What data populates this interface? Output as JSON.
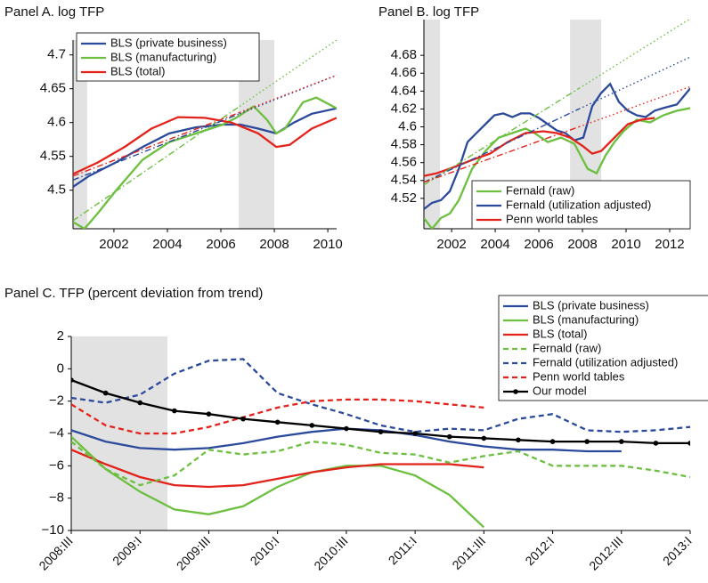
{
  "chart_data": [
    {
      "type": "line",
      "title": "Panel A. log TFP",
      "xlim": [
        2000.47,
        2010.33
      ],
      "xticks": [
        2002,
        2004,
        2006,
        2008,
        2010
      ],
      "ylim": [
        4.443,
        4.722
      ],
      "yticks": [
        4.5,
        4.55,
        4.6,
        4.65,
        4.7
      ],
      "shades": [
        [
          2000.47,
          2001.0
        ],
        [
          2006.67,
          2008.0
        ]
      ],
      "legend": "upper-left",
      "series": [
        {
          "name": "BLS (private business)",
          "color": "#2b4a9b",
          "x": [
            2000.47,
            2001.07,
            2002.07,
            2003.07,
            2004.07,
            2005.07,
            2006.07,
            2006.73,
            2007.4,
            2008.07,
            2008.73,
            2009.4,
            2010.33
          ],
          "values": [
            4.505,
            4.521,
            4.541,
            4.564,
            4.584,
            4.593,
            4.597,
            4.597,
            4.591,
            4.584,
            4.6,
            4.613,
            4.621
          ]
        },
        {
          "name": "BLS (manufacturing)",
          "color": "#6cbf3f",
          "x": [
            2000.47,
            2000.9,
            2001.4,
            2002.07,
            2003.07,
            2004.07,
            2005.07,
            2006.07,
            2006.57,
            2007.23,
            2007.73,
            2008.07,
            2008.4,
            2009.07,
            2009.57,
            2010.33
          ],
          "values": [
            4.453,
            4.443,
            4.466,
            4.499,
            4.545,
            4.571,
            4.584,
            4.597,
            4.607,
            4.624,
            4.604,
            4.584,
            4.591,
            4.63,
            4.637,
            4.621
          ]
        },
        {
          "name": "BLS (total)",
          "color": "#e3231b",
          "x": [
            2000.47,
            2001.4,
            2002.4,
            2003.4,
            2004.4,
            2005.4,
            2006.4,
            2007.4,
            2008.07,
            2008.57,
            2009.4,
            2010.33
          ],
          "values": [
            4.524,
            4.541,
            4.564,
            4.591,
            4.608,
            4.607,
            4.6,
            4.584,
            4.564,
            4.567,
            4.591,
            4.607
          ]
        },
        {
          "color": "#6cbf3f",
          "dash": [
            "dashdot",
            "dot"
          ],
          "x": [
            2000.47,
            2006.7,
            2010.33
          ],
          "values": [
            4.455,
            4.624,
            4.722
          ]
        },
        {
          "color": "#2b4a9b",
          "dash": [
            "dashdot",
            "dot"
          ],
          "x": [
            2000.47,
            2006.7,
            2010.33
          ],
          "values": [
            4.515,
            4.613,
            4.67
          ]
        },
        {
          "color": "#e3231b",
          "dash": [
            "dashdot",
            "dot"
          ],
          "x": [
            2000.47,
            2006.7,
            2010.33
          ],
          "values": [
            4.521,
            4.615,
            4.67
          ]
        }
      ]
    },
    {
      "type": "line",
      "title": "Panel B. log TFP",
      "xlim": [
        2000.73,
        2012.94
      ],
      "xticks": [
        2002,
        2004,
        2006,
        2008,
        2010,
        2012
      ],
      "ylim": [
        4.486,
        4.72
      ],
      "yticks": [
        4.52,
        4.54,
        4.56,
        4.58,
        4.6,
        4.62,
        4.64,
        4.66,
        4.68
      ],
      "shades": [
        [
          2000.73,
          2001.47
        ],
        [
          2007.43,
          2008.86
        ]
      ],
      "legend": "lower-right",
      "series": [
        {
          "name": "Fernald (raw)",
          "color": "#6cbf3f",
          "x": [
            2000.73,
            2001.1,
            2001.51,
            2001.92,
            2002.33,
            2002.94,
            2003.55,
            2004.16,
            2004.78,
            2005.39,
            2005.8,
            2006.41,
            2007.02,
            2007.63,
            2008.24,
            2008.65,
            2009.06,
            2009.47,
            2009.88,
            2010.49,
            2011.1,
            2011.71,
            2012.33,
            2012.94
          ],
          "values": [
            4.498,
            4.486,
            4.498,
            4.503,
            4.518,
            4.553,
            4.573,
            4.588,
            4.593,
            4.598,
            4.593,
            4.583,
            4.588,
            4.581,
            4.553,
            4.548,
            4.568,
            4.583,
            4.595,
            4.608,
            4.605,
            4.613,
            4.618,
            4.621
          ]
        },
        {
          "name": "Fernald (utilization adjusted)",
          "color": "#2b4a9b",
          "x": [
            2000.73,
            2001.1,
            2001.51,
            2001.92,
            2002.33,
            2002.73,
            2003.14,
            2003.55,
            2003.96,
            2004.37,
            2004.78,
            2005.18,
            2005.59,
            2006.0,
            2006.41,
            2006.82,
            2007.22,
            2007.63,
            2008.04,
            2008.45,
            2008.86,
            2009.27,
            2009.67,
            2010.08,
            2010.49,
            2010.9,
            2011.31,
            2011.71,
            2012.33,
            2012.94
          ],
          "values": [
            4.508,
            4.515,
            4.518,
            4.528,
            4.553,
            4.583,
            4.593,
            4.603,
            4.613,
            4.615,
            4.611,
            4.615,
            4.615,
            4.61,
            4.603,
            4.596,
            4.593,
            4.585,
            4.588,
            4.623,
            4.638,
            4.648,
            4.628,
            4.618,
            4.613,
            4.611,
            4.618,
            4.621,
            4.625,
            4.643
          ]
        },
        {
          "name": "Penn world tables",
          "color": "#e3231b",
          "x": [
            2000.73,
            2001.31,
            2002.12,
            2002.94,
            2003.76,
            2004.57,
            2005.39,
            2006.2,
            2006.82,
            2007.43,
            2008.04,
            2008.45,
            2008.86,
            2009.47,
            2010.08,
            2010.69,
            2011.31
          ],
          "values": [
            4.545,
            4.548,
            4.555,
            4.563,
            4.57,
            4.583,
            4.593,
            4.595,
            4.593,
            4.588,
            4.578,
            4.57,
            4.573,
            4.588,
            4.603,
            4.608,
            4.61
          ]
        },
        {
          "color": "#6cbf3f",
          "dash": [
            "dashdot",
            "dot"
          ],
          "x": [
            2000.73,
            2007.84,
            2012.94
          ],
          "values": [
            4.535,
            4.643,
            4.721
          ]
        },
        {
          "color": "#2b4a9b",
          "dash": [
            "dashdot",
            "dot"
          ],
          "x": [
            2000.73,
            2007.84,
            2012.94
          ],
          "values": [
            4.538,
            4.62,
            4.678
          ]
        },
        {
          "color": "#e3231b",
          "dash": [
            "dashdot",
            "dot"
          ],
          "x": [
            2000.73,
            2007.84,
            2012.94
          ],
          "values": [
            4.538,
            4.6,
            4.645
          ]
        }
      ]
    },
    {
      "type": "line",
      "title": "Panel C. TFP (percent deviation from trend)",
      "categories": [
        "2008:III",
        null,
        "2009:I",
        null,
        "2009:III",
        null,
        "2010:I",
        null,
        "2010:III",
        null,
        "2011:I",
        null,
        "2011:III",
        null,
        "2012:I",
        null,
        "2012:III",
        null,
        "2013:I"
      ],
      "ylim": [
        -10,
        2
      ],
      "yticks": [
        2,
        0,
        {
          "value": -2,
          "label": "−2"
        },
        {
          "value": -4,
          "label": "−4"
        },
        {
          "value": -6,
          "label": "−6"
        },
        {
          "value": -8,
          "label": "−8"
        },
        {
          "value": -10,
          "label": "−10"
        }
      ],
      "legend": "upper-right",
      "series": [
        {
          "name": "BLS (private business)",
          "color": "#2b4a9b",
          "values": [
            -3.8,
            -4.5,
            -4.9,
            -5.0,
            -4.9,
            -4.6,
            -4.2,
            -3.9,
            -3.7,
            -3.8,
            -4.1,
            -4.5,
            -4.8,
            -5.0,
            -5.0,
            -5.1,
            -5.1,
            null,
            null
          ]
        },
        {
          "name": "BLS (manufacturing)",
          "color": "#6cbf3f",
          "values": [
            -4.2,
            -6.2,
            -7.6,
            -8.7,
            -9.0,
            -8.5,
            -7.3,
            -6.4,
            -6.0,
            -6.0,
            -6.6,
            -7.8,
            -9.8,
            null,
            null,
            null,
            null,
            null,
            null
          ]
        },
        {
          "name": "BLS (total)",
          "color": "#e3231b",
          "values": [
            -5.0,
            -5.9,
            -6.7,
            -7.2,
            -7.3,
            -7.2,
            -6.8,
            -6.4,
            -6.1,
            -5.9,
            -5.9,
            -5.9,
            -6.1,
            null,
            null,
            null,
            null,
            null,
            null
          ]
        },
        {
          "name": "Fernald (raw)",
          "color": "#6cbf3f",
          "dash": "dash",
          "values": [
            -4.5,
            -6.2,
            -7.2,
            -6.6,
            -5.0,
            -5.3,
            -5.1,
            -4.5,
            -4.7,
            -5.2,
            -5.3,
            -5.8,
            -5.4,
            -5.1,
            -6.0,
            -6.0,
            -6.0,
            -6.3,
            -6.7
          ]
        },
        {
          "name": "Fernald (utilization adjusted)",
          "color": "#2b4a9b",
          "dash": "dash",
          "values": [
            -1.8,
            -2.1,
            -1.6,
            -0.3,
            0.5,
            0.6,
            -1.5,
            -2.2,
            -2.8,
            -3.5,
            -3.9,
            -3.7,
            -3.8,
            -3.1,
            -2.8,
            -3.8,
            -3.9,
            -3.8,
            -3.6
          ]
        },
        {
          "name": "Penn world tables",
          "color": "#e3231b",
          "dash": "dash",
          "values": [
            -2.2,
            -3.5,
            -4.0,
            -4.0,
            -3.6,
            -3.0,
            -2.4,
            -2.0,
            -1.9,
            -1.9,
            -2.0,
            -2.2,
            -2.4,
            null,
            null,
            null,
            null,
            null,
            null
          ]
        },
        {
          "name": "Our model",
          "color": "#000000",
          "marker": true,
          "values": [
            -0.7,
            -1.5,
            -2.1,
            -2.6,
            -2.8,
            -3.1,
            -3.3,
            -3.5,
            -3.7,
            -3.9,
            -4.0,
            -4.2,
            -4.3,
            -4.4,
            -4.5,
            -4.5,
            -4.5,
            -4.6,
            -4.6
          ]
        }
      ]
    }
  ]
}
